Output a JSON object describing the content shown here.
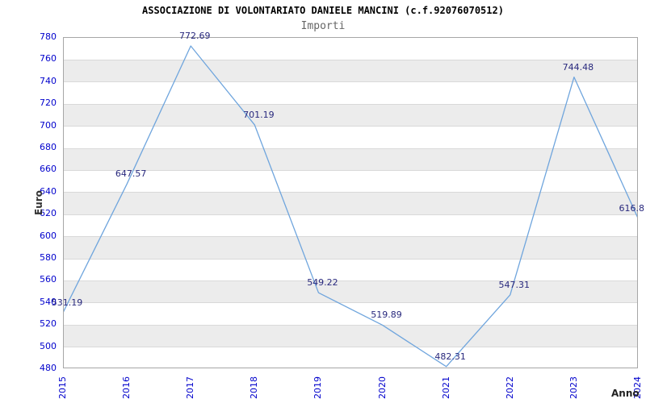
{
  "header": {
    "title": "ASSOCIAZIONE DI VOLONTARIATO DANIELE MANCINI (c.f.92076070512)",
    "subtitle": "Importi"
  },
  "chart_data": {
    "type": "line",
    "title": "ASSOCIAZIONE DI VOLONTARIATO DANIELE MANCINI (c.f.92076070512)",
    "subtitle": "Importi",
    "xlabel": "Anno",
    "ylabel": "Euro",
    "categories": [
      "2015",
      "2016",
      "2017",
      "2018",
      "2019",
      "2020",
      "2021",
      "2022",
      "2023",
      "2024"
    ],
    "series": [
      {
        "name": "Importi",
        "values": [
          531.19,
          647.57,
          772.69,
          701.19,
          549.22,
          519.89,
          482.31,
          547.31,
          744.48,
          616.8
        ]
      }
    ],
    "point_labels": [
      "531.19",
      "647.57",
      "772.69",
      "701.19",
      "549.22",
      "519.89",
      "482.31",
      "547.31",
      "744.48",
      "616.8"
    ],
    "ylim": [
      480,
      780
    ],
    "ytick_step": 20,
    "grid": true,
    "legend": "none",
    "background_bands": "alternating horizontal",
    "colors": {
      "line": "#6fa5dd",
      "tick_label": "#0000cc",
      "point_label": "#28287d",
      "band_alt": "#ececec",
      "grid_line": "#d9d9d9",
      "border": "#a6a6a6",
      "title": "#000000",
      "subtitle": "#666666",
      "axis_title": "#333333"
    }
  }
}
